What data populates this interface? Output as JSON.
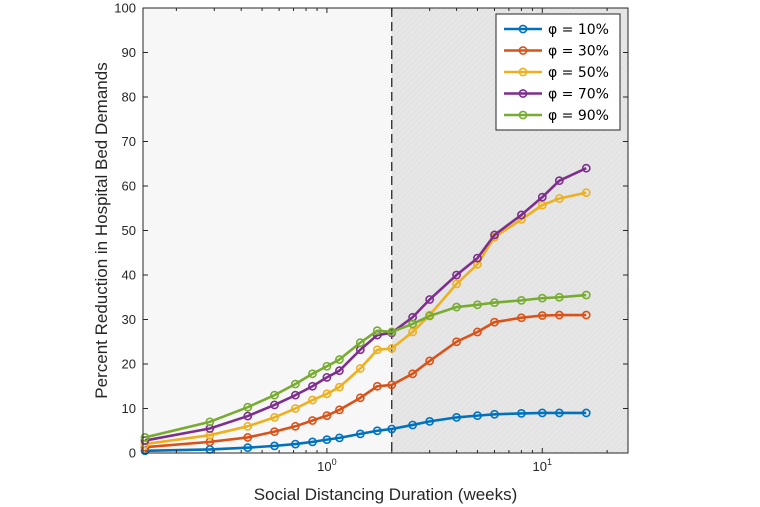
{
  "chart_data": {
    "type": "line",
    "xlabel": "Social Distancing Duration (weeks)",
    "ylabel": "Percent Reduction in Hospital Bed Demands",
    "xscale": "log",
    "xlim": [
      0.14,
      25
    ],
    "ylim": [
      0,
      100
    ],
    "xticks": [
      {
        "value": 1,
        "base": "10",
        "exp": "0"
      },
      {
        "value": 10,
        "base": "10",
        "exp": "1"
      }
    ],
    "yticks": [
      "0",
      "10",
      "20",
      "30",
      "40",
      "50",
      "60",
      "70",
      "80",
      "90",
      "100"
    ],
    "grid": false,
    "legend_position": "top-right",
    "reference_line_x": 2,
    "shaded_region_x": [
      2,
      25
    ],
    "x": [
      0.143,
      0.286,
      0.429,
      0.571,
      0.714,
      0.857,
      1.0,
      1.143,
      1.429,
      1.714,
      2.0,
      2.5,
      3.0,
      4.0,
      5.0,
      6.0,
      8.0,
      10.0,
      12.0,
      16.0
    ],
    "series": [
      {
        "name": "φ = 10%",
        "color": "#0072BD",
        "values": [
          0.5,
          0.8,
          1.2,
          1.6,
          2.0,
          2.5,
          3.0,
          3.4,
          4.3,
          5.0,
          5.4,
          6.3,
          7.1,
          8.0,
          8.4,
          8.7,
          8.9,
          9.0,
          9.0,
          9.0
        ]
      },
      {
        "name": "φ = 30%",
        "color": "#D95319",
        "values": [
          1.3,
          2.5,
          3.5,
          4.8,
          6.0,
          7.3,
          8.4,
          9.7,
          12.4,
          15.0,
          15.3,
          17.8,
          20.7,
          25.0,
          27.2,
          29.4,
          30.4,
          30.9,
          31.0,
          31.0
        ]
      },
      {
        "name": "φ = 50%",
        "color": "#EDB120",
        "values": [
          2.0,
          4.0,
          6.0,
          8.0,
          10.0,
          11.9,
          13.3,
          14.8,
          19.0,
          23.2,
          23.5,
          27.2,
          31.0,
          38.0,
          42.4,
          48.5,
          52.5,
          55.7,
          57.2,
          58.5
        ]
      },
      {
        "name": "φ = 70%",
        "color": "#7E2F8E",
        "values": [
          2.8,
          5.5,
          8.3,
          10.8,
          13.0,
          15.0,
          17.0,
          18.5,
          23.2,
          26.5,
          27.0,
          30.5,
          34.5,
          40.0,
          43.8,
          49.0,
          53.5,
          57.5,
          61.2,
          64.0
        ]
      },
      {
        "name": "φ = 90%",
        "color": "#77AC30",
        "values": [
          3.5,
          7.0,
          10.3,
          13.0,
          15.5,
          17.8,
          19.5,
          21.0,
          24.8,
          27.5,
          27.2,
          29.0,
          30.8,
          32.8,
          33.3,
          33.8,
          34.3,
          34.8,
          35.0,
          35.5
        ]
      }
    ]
  }
}
